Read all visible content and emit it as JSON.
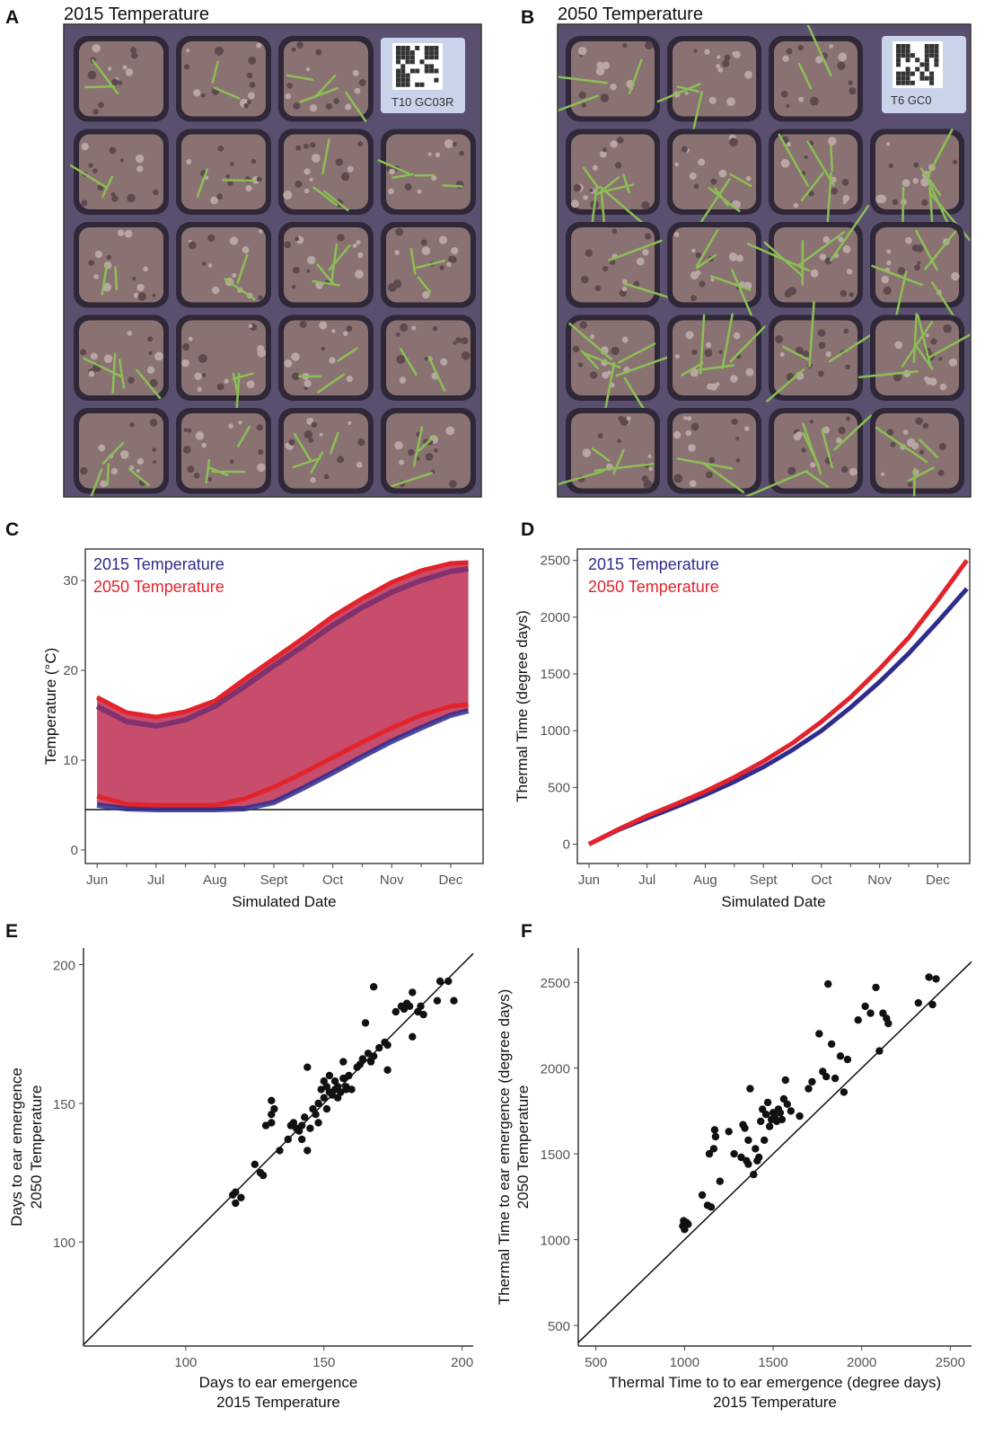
{
  "panels": {
    "a": {
      "letter": "A",
      "title": "2015 Temperature",
      "tag": "T10  GC03R"
    },
    "b": {
      "letter": "B",
      "title": "2050 Temperature",
      "tag": "T6  GC0"
    },
    "c": {
      "letter": "C"
    },
    "d": {
      "letter": "D"
    },
    "e": {
      "letter": "E"
    },
    "f": {
      "letter": "F"
    }
  },
  "colors": {
    "series_2015": "#2e2c8c",
    "series_2050": "#e3232b",
    "ribbon": "#c23a5c",
    "frame": "#444444",
    "plant": "#8bbf55",
    "tray": "#5b4f6f",
    "soil": "#8a7272"
  },
  "chart_data": [
    {
      "type": "area",
      "panel": "C",
      "title": "",
      "xlabel": "Simulated Date",
      "ylabel": "Temperature (°C)",
      "x_ticks": [
        "Jun",
        "Jul",
        "Aug",
        "Sept",
        "Oct",
        "Nov",
        "Dec"
      ],
      "y_ticks": [
        0,
        10,
        20,
        30
      ],
      "ylim": [
        -1.5,
        33.5
      ],
      "xlim": [
        -0.2,
        6.55
      ],
      "legend": [
        "2015 Temperature",
        "2050 Temperature"
      ],
      "legend_position": "top-left",
      "reference_line_y": 4.5,
      "x": [
        0,
        0.5,
        1,
        1.5,
        2,
        2.5,
        3,
        3.5,
        4,
        4.5,
        5,
        5.5,
        6,
        6.3
      ],
      "series": [
        {
          "name": "2015 Temperature",
          "role": "max",
          "values": [
            16,
            14.3,
            13.8,
            14.5,
            16,
            18.2,
            20.5,
            22.7,
            25,
            27,
            28.7,
            30,
            31,
            31.3
          ]
        },
        {
          "name": "2015 Temperature",
          "role": "min",
          "values": [
            5,
            4.6,
            4.5,
            4.5,
            4.5,
            4.6,
            5.3,
            6.9,
            8.6,
            10.4,
            12.1,
            13.6,
            15,
            15.5
          ]
        },
        {
          "name": "2050 Temperature",
          "role": "max",
          "values": [
            17,
            15.3,
            14.8,
            15.4,
            16.6,
            19,
            21.3,
            23.6,
            26,
            28,
            29.8,
            31.1,
            31.9,
            32
          ]
        },
        {
          "name": "2050 Temperature",
          "role": "min",
          "values": [
            6,
            5.1,
            5,
            5,
            5,
            5.7,
            7,
            8.6,
            10.3,
            12,
            13.6,
            15,
            16,
            16.2
          ]
        }
      ]
    },
    {
      "type": "line",
      "panel": "D",
      "title": "",
      "xlabel": "Simulated Date",
      "ylabel": "Thermal Time (degree days)",
      "x_ticks": [
        "Jun",
        "Jul",
        "Aug",
        "Sept",
        "Oct",
        "Nov",
        "Dec"
      ],
      "y_ticks": [
        0,
        500,
        1000,
        1500,
        2000,
        2500
      ],
      "ylim": [
        -170,
        2600
      ],
      "xlim": [
        -0.2,
        6.55
      ],
      "legend": [
        "2015 Temperature",
        "2050 Temperature"
      ],
      "legend_position": "top-left",
      "x": [
        0,
        0.5,
        1,
        1.5,
        2,
        2.5,
        3,
        3.5,
        4,
        4.5,
        5,
        5.5,
        6,
        6.5
      ],
      "series": [
        {
          "name": "2015 Temperature",
          "values": [
            0,
            125,
            230,
            330,
            435,
            550,
            680,
            830,
            1000,
            1205,
            1430,
            1680,
            1960,
            2250
          ]
        },
        {
          "name": "2050 Temperature",
          "values": [
            0,
            130,
            250,
            355,
            465,
            590,
            730,
            890,
            1080,
            1295,
            1545,
            1820,
            2150,
            2500
          ]
        }
      ]
    },
    {
      "type": "scatter",
      "panel": "E",
      "title": "",
      "xlabel": "Days to ear emergence",
      "xlabel2": "2015 Temperature",
      "ylabel": "Days to ear emergence",
      "ylabel2": "2050 Temperature",
      "x_ticks": [
        100,
        150,
        200
      ],
      "y_ticks": [
        100,
        150,
        200
      ],
      "xlim": [
        63,
        204
      ],
      "ylim": [
        62.5,
        206
      ],
      "identity_line": true,
      "points": [
        [
          117,
          117
        ],
        [
          118,
          118
        ],
        [
          118,
          114
        ],
        [
          120,
          116
        ],
        [
          125,
          128
        ],
        [
          127,
          125
        ],
        [
          128,
          124
        ],
        [
          129,
          142
        ],
        [
          131,
          143
        ],
        [
          131,
          151
        ],
        [
          131,
          146
        ],
        [
          132,
          148
        ],
        [
          134,
          133
        ],
        [
          137,
          137
        ],
        [
          138,
          142
        ],
        [
          139,
          143
        ],
        [
          140,
          141
        ],
        [
          141,
          140
        ],
        [
          142,
          142
        ],
        [
          142,
          137
        ],
        [
          143,
          145
        ],
        [
          144,
          133
        ],
        [
          144,
          163
        ],
        [
          145,
          141
        ],
        [
          146,
          148
        ],
        [
          147,
          146
        ],
        [
          148,
          150
        ],
        [
          148,
          143
        ],
        [
          149,
          155
        ],
        [
          150,
          152
        ],
        [
          150,
          158
        ],
        [
          151,
          156
        ],
        [
          151,
          148
        ],
        [
          152,
          154
        ],
        [
          152,
          160
        ],
        [
          153,
          153
        ],
        [
          154,
          155
        ],
        [
          154,
          158
        ],
        [
          155,
          156
        ],
        [
          155,
          152
        ],
        [
          156,
          154
        ],
        [
          157,
          159
        ],
        [
          157,
          165
        ],
        [
          158,
          156
        ],
        [
          158,
          155
        ],
        [
          159,
          160
        ],
        [
          160,
          155
        ],
        [
          162,
          163
        ],
        [
          163,
          164
        ],
        [
          164,
          166
        ],
        [
          165,
          179
        ],
        [
          166,
          168
        ],
        [
          167,
          165
        ],
        [
          168,
          167
        ],
        [
          168,
          192
        ],
        [
          170,
          170
        ],
        [
          172,
          172
        ],
        [
          173,
          171
        ],
        [
          173,
          162
        ],
        [
          176,
          183
        ],
        [
          178,
          185
        ],
        [
          179,
          184
        ],
        [
          180,
          186
        ],
        [
          181,
          185
        ],
        [
          182,
          174
        ],
        [
          182,
          190
        ],
        [
          184,
          183
        ],
        [
          185,
          185
        ],
        [
          186,
          182
        ],
        [
          191,
          187
        ],
        [
          192,
          194
        ],
        [
          195,
          194
        ],
        [
          197,
          187
        ]
      ]
    },
    {
      "type": "scatter",
      "panel": "F",
      "title": "",
      "xlabel": "Thermal Time to to ear emergence (degree days)",
      "xlabel2": "2015 Temperature",
      "ylabel": "Thermal Time to ear emergence (degree days)",
      "ylabel2": "2050 Temperature",
      "x_ticks": [
        500,
        1000,
        1500,
        2000,
        2500
      ],
      "y_ticks": [
        500,
        1000,
        1500,
        2000,
        2500
      ],
      "xlim": [
        400,
        2620
      ],
      "ylim": [
        380,
        2700
      ],
      "identity_line": true,
      "points": [
        [
          990,
          1080
        ],
        [
          995,
          1110
        ],
        [
          1000,
          1060
        ],
        [
          1010,
          1100
        ],
        [
          1020,
          1090
        ],
        [
          1100,
          1260
        ],
        [
          1130,
          1200
        ],
        [
          1140,
          1500
        ],
        [
          1150,
          1190
        ],
        [
          1165,
          1530
        ],
        [
          1170,
          1640
        ],
        [
          1175,
          1600
        ],
        [
          1200,
          1340
        ],
        [
          1250,
          1630
        ],
        [
          1280,
          1500
        ],
        [
          1320,
          1480
        ],
        [
          1330,
          1670
        ],
        [
          1340,
          1650
        ],
        [
          1350,
          1460
        ],
        [
          1360,
          1440
        ],
        [
          1360,
          1580
        ],
        [
          1370,
          1880
        ],
        [
          1390,
          1380
        ],
        [
          1400,
          1530
        ],
        [
          1410,
          1460
        ],
        [
          1420,
          1480
        ],
        [
          1430,
          1690
        ],
        [
          1440,
          1760
        ],
        [
          1450,
          1580
        ],
        [
          1460,
          1730
        ],
        [
          1470,
          1800
        ],
        [
          1480,
          1660
        ],
        [
          1490,
          1700
        ],
        [
          1500,
          1740
        ],
        [
          1510,
          1710
        ],
        [
          1520,
          1690
        ],
        [
          1530,
          1760
        ],
        [
          1540,
          1740
        ],
        [
          1550,
          1700
        ],
        [
          1560,
          1820
        ],
        [
          1570,
          1930
        ],
        [
          1580,
          1790
        ],
        [
          1600,
          1750
        ],
        [
          1650,
          1720
        ],
        [
          1700,
          1880
        ],
        [
          1720,
          1920
        ],
        [
          1760,
          2200
        ],
        [
          1780,
          1980
        ],
        [
          1800,
          1950
        ],
        [
          1810,
          2490
        ],
        [
          1830,
          2140
        ],
        [
          1850,
          1940
        ],
        [
          1880,
          2070
        ],
        [
          1900,
          1860
        ],
        [
          1920,
          2050
        ],
        [
          1980,
          2280
        ],
        [
          2020,
          2360
        ],
        [
          2050,
          2320
        ],
        [
          2080,
          2470
        ],
        [
          2100,
          2100
        ],
        [
          2120,
          2320
        ],
        [
          2140,
          2290
        ],
        [
          2150,
          2260
        ],
        [
          2320,
          2380
        ],
        [
          2380,
          2530
        ],
        [
          2400,
          2370
        ],
        [
          2420,
          2520
        ]
      ]
    }
  ]
}
